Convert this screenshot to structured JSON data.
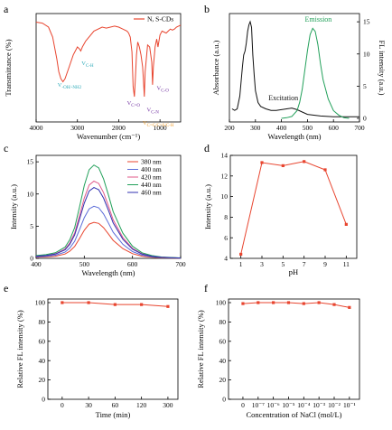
{
  "chart_data": [
    {
      "id": "a",
      "panel_label": "a",
      "type": "line",
      "xlabel": "Wavenumber (cm⁻¹)",
      "ylabel": "Transmittance (%)",
      "xlim": [
        4000,
        500
      ],
      "ylim": [
        0,
        1
      ],
      "xticks": [
        "4000",
        "3000",
        "2000",
        "1000"
      ],
      "xtick_values": [
        4000,
        3000,
        2000,
        1000
      ],
      "color": "#e8452f",
      "legend": "N, S-CDs",
      "x": [
        4000,
        3850,
        3700,
        3600,
        3500,
        3450,
        3400,
        3350,
        3300,
        3200,
        3100,
        3000,
        2950,
        2920,
        2880,
        2800,
        2600,
        2400,
        2300,
        2200,
        2100,
        2000,
        1900,
        1800,
        1760,
        1720,
        1680,
        1650,
        1620,
        1600,
        1570,
        1540,
        1500,
        1460,
        1420,
        1400,
        1380,
        1360,
        1300,
        1250,
        1200,
        1180,
        1160,
        1120,
        1080,
        1050,
        1000,
        950,
        900,
        850,
        800,
        750,
        700,
        650,
        600,
        550,
        500
      ],
      "y": [
        0.95,
        0.94,
        0.9,
        0.8,
        0.58,
        0.45,
        0.38,
        0.35,
        0.38,
        0.5,
        0.62,
        0.7,
        0.68,
        0.66,
        0.7,
        0.76,
        0.86,
        0.9,
        0.89,
        0.9,
        0.91,
        0.9,
        0.88,
        0.86,
        0.84,
        0.8,
        0.65,
        0.3,
        0.2,
        0.35,
        0.62,
        0.75,
        0.7,
        0.62,
        0.5,
        0.35,
        0.2,
        0.45,
        0.72,
        0.7,
        0.55,
        0.32,
        0.5,
        0.7,
        0.78,
        0.7,
        0.82,
        0.86,
        0.85,
        0.84,
        0.86,
        0.88,
        0.87,
        0.88,
        0.9,
        0.91,
        0.92
      ],
      "annotations": [
        {
          "text": "V",
          "sub": "-OH/-NH2",
          "color": "#2aa9b8",
          "x": 3480,
          "y": 0.3
        },
        {
          "text": "V",
          "sub": "C-H",
          "color": "#2aa9b8",
          "x": 2900,
          "y": 0.52
        },
        {
          "text": "V",
          "sub": "C=O",
          "color": "#7030a0",
          "x": 1800,
          "y": 0.12
        },
        {
          "text": "V",
          "sub": "C-O",
          "color": "#7030a0",
          "x": 1080,
          "y": 0.27
        },
        {
          "text": "V",
          "sub": "C-N",
          "color": "#7030a0",
          "x": 1320,
          "y": 0.05
        },
        {
          "text": "V",
          "sub": "C=C/C=S/C-H",
          "color": "#f0a030",
          "x": 1420,
          "y": -0.08
        }
      ]
    },
    {
      "id": "b",
      "panel_label": "b",
      "type": "line",
      "xlabel": "Wavelength (nm)",
      "ylabel": "Absorbance (a.u.)",
      "y2label": "FL intensity (a.u.)",
      "xlim": [
        200,
        700
      ],
      "ylim": [
        0,
        1.3
      ],
      "y2lim": [
        0,
        16
      ],
      "xticks": [
        "200",
        "300",
        "400",
        "500",
        "600",
        "700"
      ],
      "xtick_values": [
        200,
        300,
        400,
        500,
        600,
        700
      ],
      "y2ticks": [
        "0",
        "5",
        "10",
        "15"
      ],
      "y2tick_values": [
        0,
        5,
        10,
        15
      ],
      "series": [
        {
          "axis": "left",
          "color": "#111111",
          "x": [
            210,
            220,
            230,
            240,
            250,
            255,
            260,
            265,
            270,
            275,
            280,
            285,
            290,
            295,
            300,
            310,
            320,
            340,
            360,
            380,
            400,
            420,
            440,
            460,
            480,
            500,
            550,
            600,
            650,
            700
          ],
          "y": [
            0.12,
            0.1,
            0.12,
            0.28,
            0.65,
            0.8,
            0.85,
            0.95,
            1.1,
            1.18,
            1.22,
            1.15,
            0.8,
            0.55,
            0.35,
            0.2,
            0.15,
            0.12,
            0.1,
            0.1,
            0.11,
            0.12,
            0.13,
            0.11,
            0.08,
            0.05,
            0.03,
            0.02,
            0.02,
            0.02
          ]
        },
        {
          "axis": "right",
          "color": "#22a05a",
          "x": [
            400,
            420,
            440,
            460,
            470,
            480,
            490,
            500,
            510,
            520,
            530,
            540,
            550,
            560,
            580,
            600,
            620,
            640,
            660
          ],
          "y": [
            0,
            0.1,
            0.3,
            1.2,
            2.5,
            4.5,
            7.5,
            10.5,
            13.0,
            14.0,
            13.5,
            11.5,
            8.5,
            6.0,
            3.0,
            1.2,
            0.5,
            0.1,
            0
          ]
        }
      ],
      "annotations": [
        {
          "text": "Emission",
          "color": "#22a05a",
          "x": 490,
          "y": 1.22
        },
        {
          "text": "Excitation",
          "color": "#111111",
          "x": 350,
          "y": 0.23
        }
      ]
    },
    {
      "id": "c",
      "panel_label": "c",
      "type": "line",
      "xlabel": "Wavelength (nm)",
      "ylabel": "Intensity (a.u.)",
      "xlim": [
        400,
        700
      ],
      "ylim": [
        0,
        16
      ],
      "xticks": [
        "400",
        "500",
        "600",
        "700"
      ],
      "xtick_values": [
        400,
        500,
        600,
        700
      ],
      "yticks": [
        "0",
        "5",
        "10",
        "15"
      ],
      "ytick_values": [
        0,
        5,
        10,
        15
      ],
      "x": [
        400,
        420,
        440,
        460,
        470,
        480,
        490,
        500,
        510,
        520,
        530,
        540,
        550,
        560,
        580,
        600,
        620,
        640,
        660,
        680,
        700
      ],
      "shape": [
        0.03,
        0.04,
        0.06,
        0.12,
        0.2,
        0.33,
        0.55,
        0.78,
        0.95,
        1.0,
        0.97,
        0.85,
        0.68,
        0.5,
        0.27,
        0.13,
        0.06,
        0.03,
        0.015,
        0.01,
        0.005
      ],
      "series": [
        {
          "name": "380 nm",
          "color": "#e8452f",
          "peak": 5.6
        },
        {
          "name": "400 nm",
          "color": "#5a6bd8",
          "peak": 8.1
        },
        {
          "name": "420 nm",
          "color": "#e05a8a",
          "peak": 12.0
        },
        {
          "name": "440 nm",
          "color": "#22a05a",
          "peak": 14.5
        },
        {
          "name": "460 nm",
          "color": "#3030b0",
          "peak": 11.0
        }
      ]
    },
    {
      "id": "d",
      "panel_label": "d",
      "type": "line",
      "xlabel": "pH",
      "ylabel": "Intensity (a.u.)",
      "xlim": [
        0,
        12
      ],
      "ylim": [
        4,
        14
      ],
      "xticks": [
        "1",
        "3",
        "5",
        "7",
        "9",
        "11"
      ],
      "xtick_values": [
        1,
        3,
        5,
        7,
        9,
        11
      ],
      "yticks": [
        "4",
        "6",
        "8",
        "10",
        "12",
        "14"
      ],
      "ytick_values": [
        4,
        6,
        8,
        10,
        12,
        14
      ],
      "color": "#e8452f",
      "x": [
        1,
        3,
        5,
        7,
        9,
        11
      ],
      "y": [
        4.4,
        13.3,
        13.0,
        13.4,
        12.6,
        7.3
      ]
    },
    {
      "id": "e",
      "panel_label": "e",
      "type": "line",
      "xlabel": "Time (min)",
      "ylabel": "Relative FL intensity (%)",
      "ylim": [
        0,
        100
      ],
      "categories": [
        "0",
        "30",
        "60",
        "120",
        "300"
      ],
      "yticks": [
        "0",
        "20",
        "40",
        "60",
        "80",
        "100"
      ],
      "ytick_values": [
        0,
        20,
        40,
        60,
        80,
        100
      ],
      "color": "#e8452f",
      "values": [
        100,
        100,
        98,
        98,
        96
      ]
    },
    {
      "id": "f",
      "panel_label": "f",
      "type": "line",
      "xlabel": "Concentration of NaCl (mol/L)",
      "ylabel": "Relative FL intensity (%)",
      "ylim": [
        0,
        100
      ],
      "categories": [
        "0",
        "10⁻⁷",
        "10⁻⁶",
        "10⁻⁵",
        "10⁻⁴",
        "10⁻³",
        "10⁻²",
        "10⁻¹"
      ],
      "yticks": [
        "0",
        "20",
        "40",
        "60",
        "80",
        "100"
      ],
      "ytick_values": [
        0,
        20,
        40,
        60,
        80,
        100
      ],
      "color": "#e8452f",
      "values": [
        99,
        100,
        100,
        100,
        99,
        100,
        98,
        95
      ]
    }
  ]
}
